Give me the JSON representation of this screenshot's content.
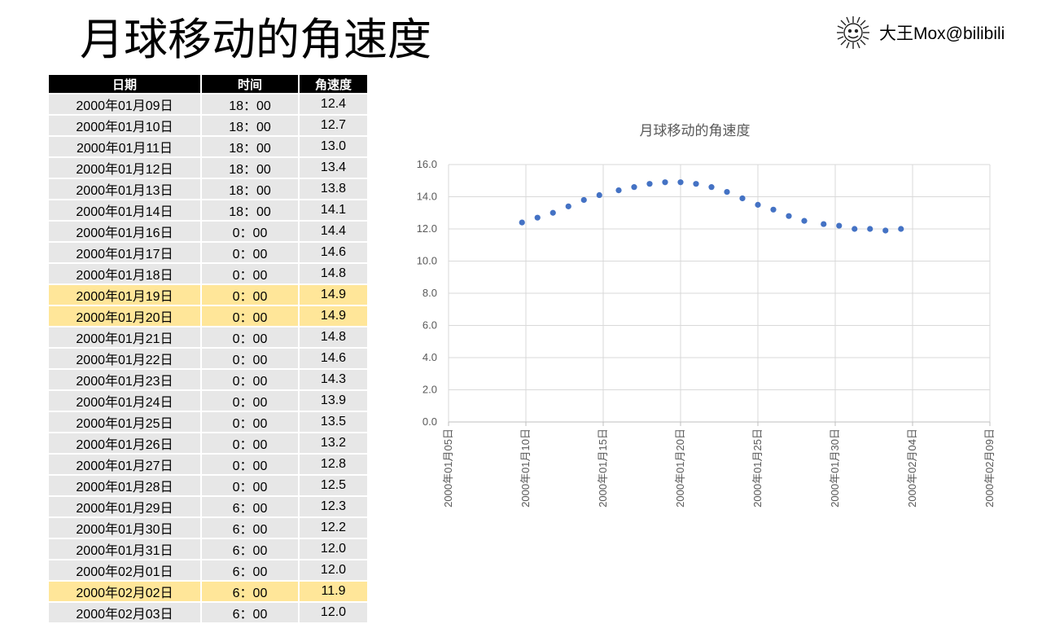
{
  "page_title": "月球移动的角速度",
  "brand": {
    "name": "大王Mox@bilibili",
    "icon": "sun-logo-icon"
  },
  "table": {
    "headers": [
      "日期",
      "时间",
      "角速度"
    ],
    "highlight_color": "#ffe699",
    "rows": [
      {
        "date": "2000年01月09日",
        "time": "18：00",
        "speed": "12.4",
        "highlight": false
      },
      {
        "date": "2000年01月10日",
        "time": "18：00",
        "speed": "12.7",
        "highlight": false
      },
      {
        "date": "2000年01月11日",
        "time": "18：00",
        "speed": "13.0",
        "highlight": false
      },
      {
        "date": "2000年01月12日",
        "time": "18：00",
        "speed": "13.4",
        "highlight": false
      },
      {
        "date": "2000年01月13日",
        "time": "18：00",
        "speed": "13.8",
        "highlight": false
      },
      {
        "date": "2000年01月14日",
        "time": "18：00",
        "speed": "14.1",
        "highlight": false
      },
      {
        "date": "2000年01月16日",
        "time": "0：00",
        "speed": "14.4",
        "highlight": false
      },
      {
        "date": "2000年01月17日",
        "time": "0：00",
        "speed": "14.6",
        "highlight": false
      },
      {
        "date": "2000年01月18日",
        "time": "0：00",
        "speed": "14.8",
        "highlight": false
      },
      {
        "date": "2000年01月19日",
        "time": "0：00",
        "speed": "14.9",
        "highlight": true
      },
      {
        "date": "2000年01月20日",
        "time": "0：00",
        "speed": "14.9",
        "highlight": true
      },
      {
        "date": "2000年01月21日",
        "time": "0：00",
        "speed": "14.8",
        "highlight": false
      },
      {
        "date": "2000年01月22日",
        "time": "0：00",
        "speed": "14.6",
        "highlight": false
      },
      {
        "date": "2000年01月23日",
        "time": "0：00",
        "speed": "14.3",
        "highlight": false
      },
      {
        "date": "2000年01月24日",
        "time": "0：00",
        "speed": "13.9",
        "highlight": false
      },
      {
        "date": "2000年01月25日",
        "time": "0：00",
        "speed": "13.5",
        "highlight": false
      },
      {
        "date": "2000年01月26日",
        "time": "0：00",
        "speed": "13.2",
        "highlight": false
      },
      {
        "date": "2000年01月27日",
        "time": "0：00",
        "speed": "12.8",
        "highlight": false
      },
      {
        "date": "2000年01月28日",
        "time": "0：00",
        "speed": "12.5",
        "highlight": false
      },
      {
        "date": "2000年01月29日",
        "time": "6：00",
        "speed": "12.3",
        "highlight": false
      },
      {
        "date": "2000年01月30日",
        "time": "6：00",
        "speed": "12.2",
        "highlight": false
      },
      {
        "date": "2000年01月31日",
        "time": "6：00",
        "speed": "12.0",
        "highlight": false
      },
      {
        "date": "2000年02月01日",
        "time": "6：00",
        "speed": "12.0",
        "highlight": false
      },
      {
        "date": "2000年02月02日",
        "time": "6：00",
        "speed": "11.9",
        "highlight": true
      },
      {
        "date": "2000年02月03日",
        "time": "6：00",
        "speed": "12.0",
        "highlight": false
      }
    ]
  },
  "chart_data": {
    "type": "scatter",
    "title": "月球移动的角速度",
    "xlabel": "",
    "ylabel": "",
    "x_axis_type": "date",
    "xlim": [
      "2000-01-05",
      "2000-02-09"
    ],
    "ylim": [
      0,
      16
    ],
    "x_ticks": [
      "2000年01月05日",
      "2000年01月10日",
      "2000年01月15日",
      "2000年01月20日",
      "2000年01月25日",
      "2000年01月30日",
      "2000年02月04日",
      "2000年02月09日"
    ],
    "y_ticks": [
      "0.0",
      "2.0",
      "4.0",
      "6.0",
      "8.0",
      "10.0",
      "12.0",
      "14.0",
      "16.0"
    ],
    "grid": true,
    "legend": "none",
    "marker_color": "#4472c4",
    "series": [
      {
        "x": [
          "2000-01-09T18:00",
          "2000-01-10T18:00",
          "2000-01-11T18:00",
          "2000-01-12T18:00",
          "2000-01-13T18:00",
          "2000-01-14T18:00",
          "2000-01-16T00:00",
          "2000-01-17T00:00",
          "2000-01-18T00:00",
          "2000-01-19T00:00",
          "2000-01-20T00:00",
          "2000-01-21T00:00",
          "2000-01-22T00:00",
          "2000-01-23T00:00",
          "2000-01-24T00:00",
          "2000-01-25T00:00",
          "2000-01-26T00:00",
          "2000-01-27T00:00",
          "2000-01-28T00:00",
          "2000-01-29T06:00",
          "2000-01-30T06:00",
          "2000-01-31T06:00",
          "2000-02-01T06:00",
          "2000-02-02T06:00",
          "2000-02-03T06:00"
        ],
        "y": [
          12.4,
          12.7,
          13.0,
          13.4,
          13.8,
          14.1,
          14.4,
          14.6,
          14.8,
          14.9,
          14.9,
          14.8,
          14.6,
          14.3,
          13.9,
          13.5,
          13.2,
          12.8,
          12.5,
          12.3,
          12.2,
          12.0,
          12.0,
          11.9,
          12.0
        ]
      }
    ]
  }
}
